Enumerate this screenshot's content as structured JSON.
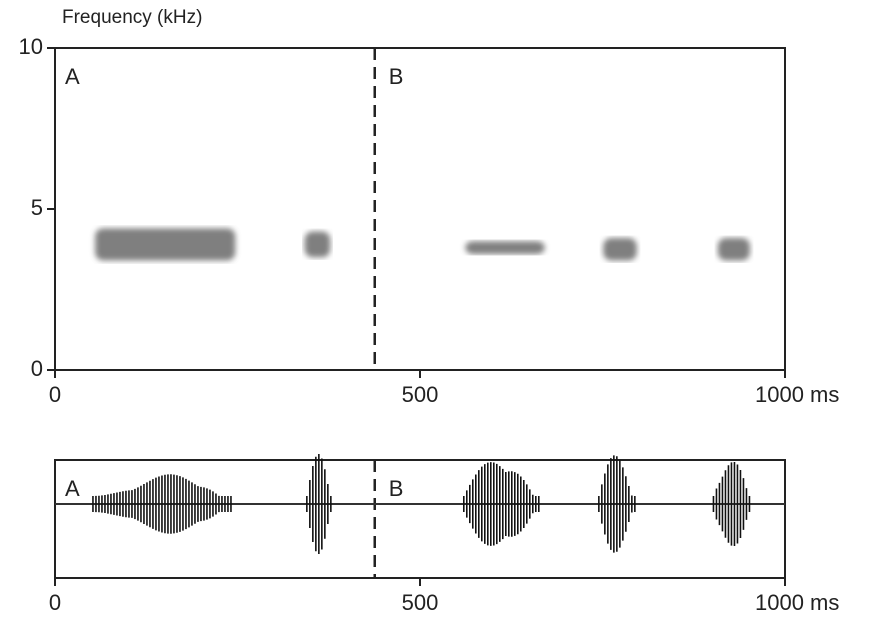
{
  "chart_data": [
    {
      "type": "spectrogram",
      "ylabel": "Frequency (kHz)",
      "xlim": [
        0,
        1000
      ],
      "ylim": [
        0,
        10
      ],
      "xticks": [
        0,
        500,
        {
          "value": 1000,
          "label": "1000 ms"
        }
      ],
      "yticks": [
        0,
        5,
        10
      ],
      "divider": 438,
      "panels": [
        "A",
        "B"
      ],
      "calls": [
        {
          "start": 55,
          "end": 247,
          "low": 3.4,
          "high": 4.4
        },
        {
          "start": 342,
          "end": 377,
          "low": 3.5,
          "high": 4.3
        },
        {
          "start": 562,
          "end": 671,
          "low": 3.6,
          "high": 4.0
        },
        {
          "start": 751,
          "end": 797,
          "low": 3.4,
          "high": 4.1
        },
        {
          "start": 908,
          "end": 952,
          "low": 3.4,
          "high": 4.1
        }
      ]
    },
    {
      "type": "waveform",
      "xlim": [
        0,
        1000
      ],
      "xticks": [
        0,
        500,
        {
          "value": 1000,
          "label": "1000 ms"
        }
      ],
      "divider": 438,
      "panels": [
        "A",
        "B"
      ],
      "calls": [
        {
          "start": 52,
          "end": 242
        },
        {
          "start": 345,
          "end": 380
        },
        {
          "start": 560,
          "end": 665
        },
        {
          "start": 745,
          "end": 795
        },
        {
          "start": 902,
          "end": 955
        }
      ]
    }
  ]
}
